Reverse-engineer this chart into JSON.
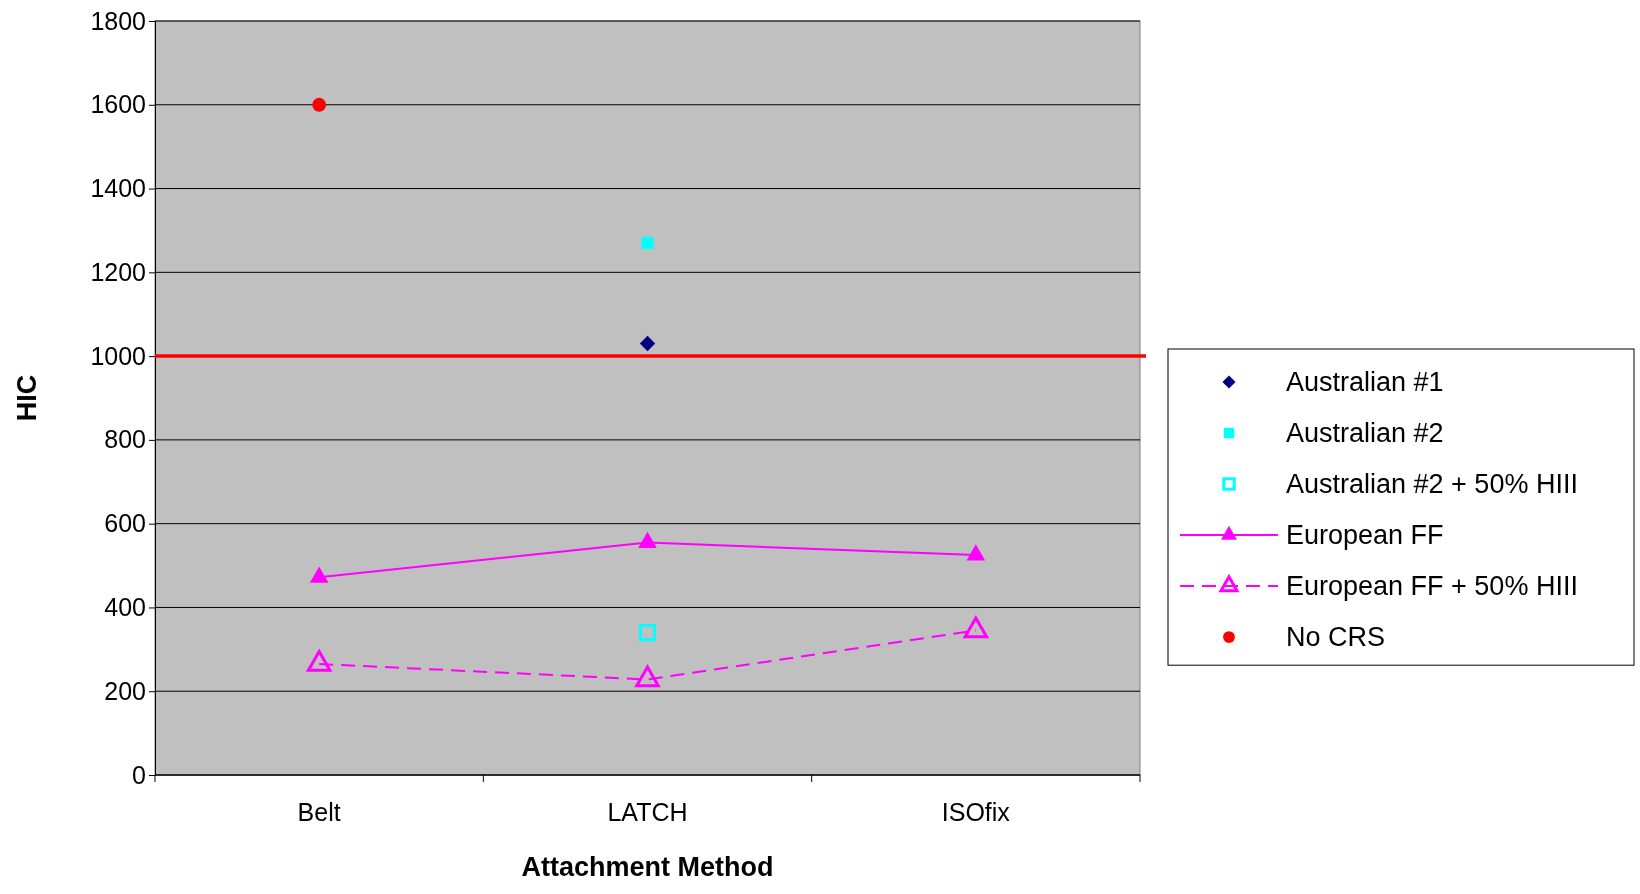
{
  "chart_data": {
    "type": "scatter",
    "xlabel": "Attachment Method",
    "ylabel": "HIC",
    "categories": [
      "Belt",
      "LATCH",
      "ISOfix"
    ],
    "ylim": [
      0,
      1800
    ],
    "yticks": [
      0,
      200,
      400,
      600,
      800,
      1000,
      1200,
      1400,
      1600,
      1800
    ],
    "grid": "y",
    "legend": "right",
    "series": [
      {
        "name": "Australian #1",
        "marker": "diamond",
        "color": "#000080",
        "values": [
          null,
          1030,
          null
        ]
      },
      {
        "name": "Australian #2",
        "marker": "square",
        "color": "#00ffff",
        "values": [
          null,
          1270,
          null
        ]
      },
      {
        "name": "Australian #2 + 50% HIII",
        "marker": "square-open",
        "color": "#00ffff",
        "values": [
          null,
          340,
          null
        ]
      },
      {
        "name": "European FF",
        "type": "line",
        "marker": "triangle",
        "line_style": "solid",
        "color": "#ff00ff",
        "values": [
          472,
          555,
          525
        ]
      },
      {
        "name": "European FF + 50% HIII",
        "type": "line",
        "marker": "triangle-open",
        "line_style": "dashed",
        "color": "#ff00ff",
        "values": [
          265,
          228,
          345
        ]
      },
      {
        "name": "No CRS",
        "marker": "circle",
        "color": "#ff0000",
        "values": [
          1600,
          null,
          null
        ]
      }
    ],
    "ref_lines": [
      {
        "axis": "y",
        "value": 1000,
        "color": "#ff0000"
      }
    ]
  }
}
